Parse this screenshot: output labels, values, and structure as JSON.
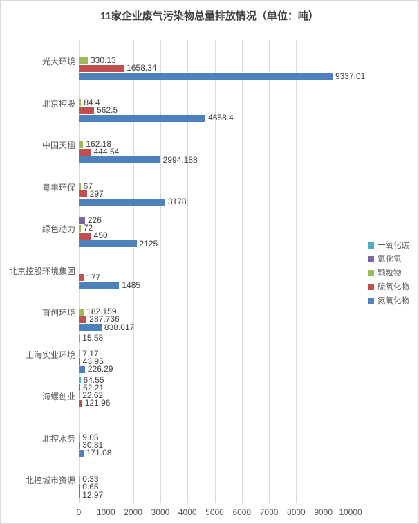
{
  "chart_data": {
    "type": "bar",
    "orientation": "horizontal",
    "title": "11家企业废气污染物总量排放情况（单位：吨）",
    "unit": "吨",
    "categories": [
      "光大环境",
      "北京控股",
      "中国天楹",
      "粤丰环保",
      "绿色动力",
      "北京控股环境集团",
      "首创环境",
      "上海实业环境",
      "海螺创业",
      "北控水务",
      "北控城市资源"
    ],
    "series": [
      {
        "name": "一氧化碳",
        "color": "#4BACC6",
        "values": [
          null,
          null,
          null,
          null,
          null,
          null,
          null,
          15.58,
          64.55,
          null,
          null
        ],
        "labels": [
          "",
          "",
          "",
          "",
          "",
          "",
          "",
          "15.58",
          "64.55",
          "",
          ""
        ]
      },
      {
        "name": "氯化氢",
        "color": "#8064A2",
        "values": [
          null,
          null,
          null,
          null,
          226,
          null,
          null,
          null,
          52.21,
          null,
          null
        ],
        "labels": [
          "",
          "",
          "",
          "",
          "226",
          "",
          "",
          "",
          "52.21",
          "",
          ""
        ]
      },
      {
        "name": "颗粒物",
        "color": "#9BBB59",
        "values": [
          330.13,
          84.4,
          162.18,
          67,
          72,
          null,
          182.159,
          7.17,
          22.62,
          9.05,
          0.33
        ],
        "labels": [
          "330.13",
          "84.4",
          "162.18",
          "67",
          "72",
          "",
          "182.159",
          "7.17",
          "22.62",
          "9.05",
          "0.33"
        ]
      },
      {
        "name": "硫氧化物",
        "color": "#C0504D",
        "values": [
          1658.34,
          562.5,
          444.54,
          297,
          450,
          177,
          287.736,
          43.95,
          121.96,
          30.81,
          0.65
        ],
        "labels": [
          "1658.34",
          "562.5",
          "444.54",
          "297",
          "450",
          "177",
          "287.736",
          "43.95",
          "121.96",
          "30.81",
          "0.65"
        ]
      },
      {
        "name": "氮氧化物",
        "color": "#4F81BD",
        "values": [
          9337.01,
          4658.4,
          2994.188,
          3178,
          2125,
          1485,
          838.017,
          226.29,
          null,
          171.08,
          12.97
        ],
        "labels": [
          "9337.01",
          "4658.4",
          "2994.188",
          "3178",
          "2125",
          "1485",
          "838.017",
          "226.29",
          "",
          "171.08",
          "12.97"
        ]
      }
    ],
    "x_ticks": [
      0,
      1000,
      2000,
      3000,
      4000,
      5000,
      6000,
      7000,
      8000,
      9000,
      10000
    ],
    "xlim": [
      0,
      10000
    ],
    "legend_position": "right",
    "grid": "vertical"
  },
  "colors": {
    "background": "#ffffff",
    "border": "#d9d9d9",
    "gridline": "#d9d9d9",
    "axis_text": "#595959",
    "value_text": "#404040",
    "title_text": "#3f3f3f"
  }
}
